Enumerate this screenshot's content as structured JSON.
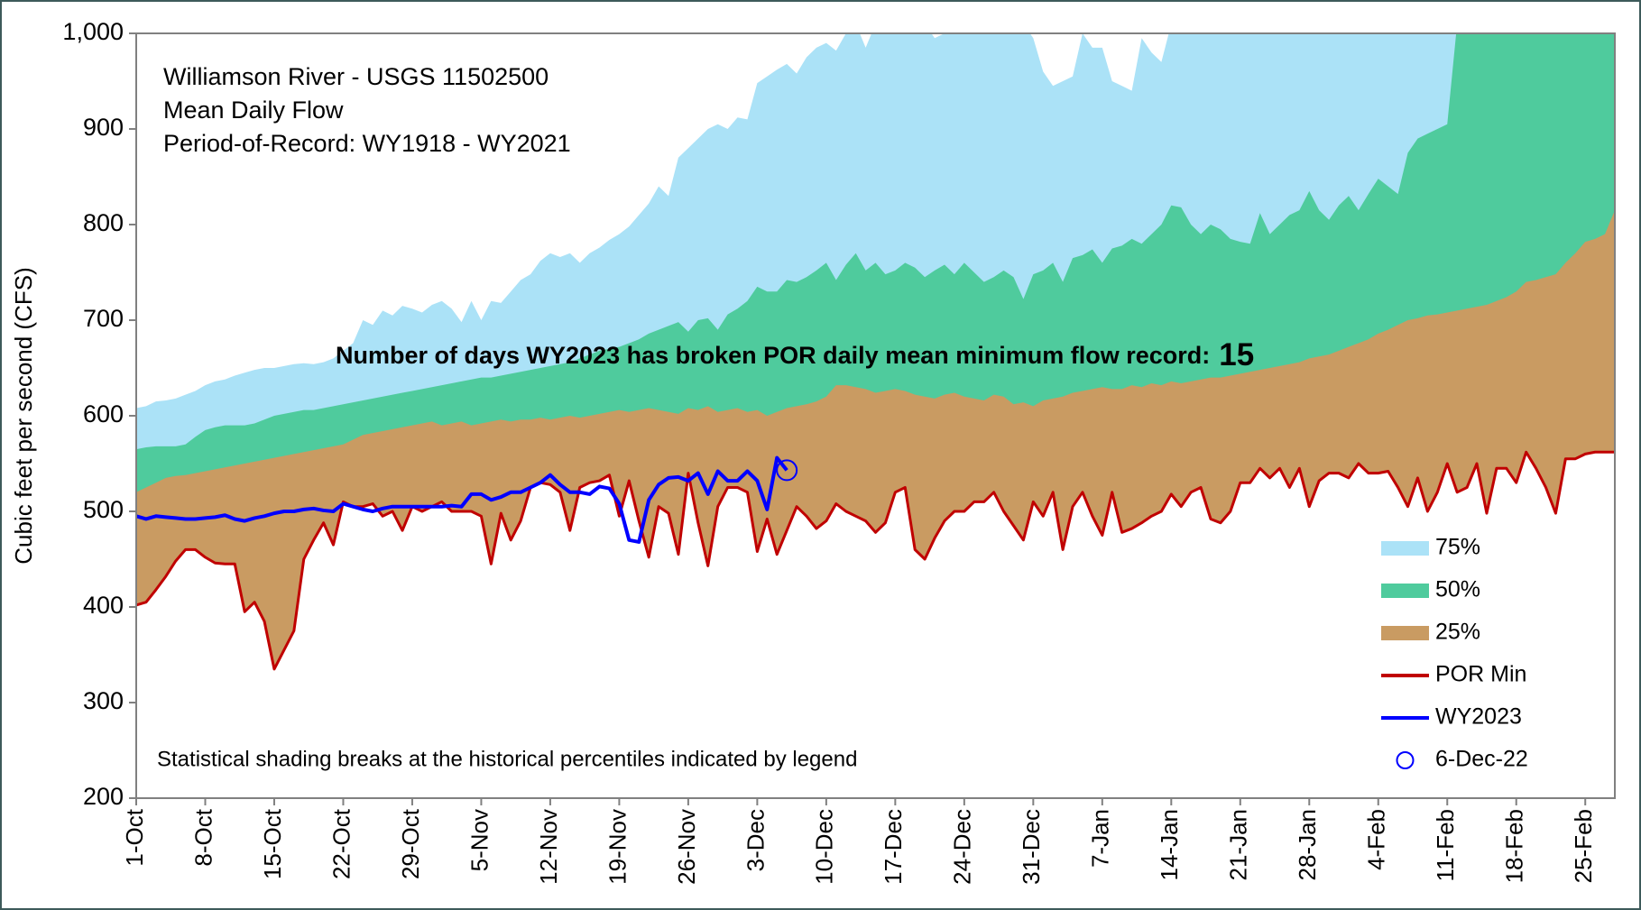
{
  "chart_data": {
    "type": "percentile_area",
    "title_lines": [
      "Williamson River - USGS 11502500",
      "Mean Daily Flow",
      "Period-of-Record: WY1918 - WY2021"
    ],
    "annotation": "Number of days WY2023 has broken POR daily mean minimum flow record:",
    "record_count": 15,
    "footnote": "Statistical shading breaks at the historical percentiles indicated by legend",
    "y_label": "Cubic feet per second (CFS)",
    "ylim": [
      200,
      1000
    ],
    "yticks": [
      200,
      300,
      400,
      500,
      600,
      700,
      800,
      900,
      {
        "value": 1000,
        "label": "1,000"
      }
    ],
    "grid": false,
    "legend": "right",
    "categories": [
      "1-Oct",
      null,
      null,
      null,
      null,
      null,
      null,
      "8-Oct",
      null,
      null,
      null,
      null,
      null,
      null,
      "15-Oct",
      null,
      null,
      null,
      null,
      null,
      null,
      "22-Oct",
      null,
      null,
      null,
      null,
      null,
      null,
      "29-Oct",
      null,
      null,
      null,
      null,
      null,
      null,
      "5-Nov",
      null,
      null,
      null,
      null,
      null,
      null,
      "12-Nov",
      null,
      null,
      null,
      null,
      null,
      null,
      "19-Nov",
      null,
      null,
      null,
      null,
      null,
      null,
      "26-Nov",
      null,
      null,
      null,
      null,
      null,
      null,
      "3-Dec",
      null,
      null,
      null,
      null,
      null,
      null,
      "10-Dec",
      null,
      null,
      null,
      null,
      null,
      null,
      "17-Dec",
      null,
      null,
      null,
      null,
      null,
      null,
      "24-Dec",
      null,
      null,
      null,
      null,
      null,
      null,
      "31-Dec",
      null,
      null,
      null,
      null,
      null,
      null,
      "7-Jan",
      null,
      null,
      null,
      null,
      null,
      null,
      "14-Jan",
      null,
      null,
      null,
      null,
      null,
      null,
      "21-Jan",
      null,
      null,
      null,
      null,
      null,
      null,
      "28-Jan",
      null,
      null,
      null,
      null,
      null,
      null,
      "4-Feb",
      null,
      null,
      null,
      null,
      null,
      null,
      "11-Feb",
      null,
      null,
      null,
      null,
      null,
      null,
      "18-Feb",
      null,
      null,
      null,
      null,
      null,
      null,
      "25-Feb",
      null,
      null,
      null
    ],
    "series": [
      {
        "name": "75%",
        "kind": "area",
        "color": "#abe2f7",
        "values": [
          608,
          610,
          615,
          616,
          618,
          622,
          626,
          632,
          636,
          638,
          642,
          645,
          648,
          650,
          650,
          652,
          654,
          655,
          654,
          656,
          660,
          668,
          676,
          700,
          695,
          710,
          705,
          715,
          712,
          708,
          716,
          720,
          712,
          698,
          720,
          700,
          720,
          718,
          730,
          742,
          748,
          762,
          770,
          766,
          770,
          760,
          770,
          776,
          784,
          790,
          798,
          810,
          822,
          840,
          830,
          870,
          880,
          890,
          900,
          905,
          900,
          912,
          910,
          948,
          955,
          962,
          968,
          958,
          975,
          985,
          990,
          982,
          1000,
          1010,
          985,
          1010,
          1010,
          1010,
          1000,
          1010,
          1010,
          995,
          1000,
          1010,
          1010,
          1000,
          1010,
          1010,
          1010,
          1000,
          1010,
          995,
          960,
          945,
          950,
          955,
          1000,
          985,
          985,
          950,
          945,
          940,
          995,
          980,
          970,
          1010,
          1010,
          1010,
          1010,
          1010,
          1010,
          1010,
          1010,
          1010,
          1010,
          1010,
          1010,
          1010,
          1010,
          1010,
          1010,
          1010,
          1010,
          1010,
          1010,
          1010,
          1010,
          1010,
          1010,
          1010,
          1010,
          1010,
          1010,
          1010,
          1010,
          1010,
          1010,
          1010,
          1010,
          1010,
          1010,
          1010,
          1010,
          1010,
          1010,
          1010,
          1010,
          1010,
          1010,
          1010,
          1010
        ]
      },
      {
        "name": "50%",
        "kind": "area",
        "color": "#4fcb9d",
        "values": [
          565,
          567,
          568,
          568,
          568,
          570,
          578,
          585,
          588,
          590,
          590,
          590,
          592,
          596,
          600,
          602,
          604,
          606,
          606,
          608,
          610,
          612,
          614,
          616,
          618,
          620,
          622,
          624,
          626,
          628,
          630,
          632,
          634,
          636,
          638,
          640,
          640,
          642,
          644,
          646,
          648,
          650,
          652,
          654,
          656,
          660,
          664,
          668,
          670,
          672,
          676,
          680,
          686,
          690,
          694,
          698,
          688,
          700,
          702,
          690,
          706,
          712,
          720,
          735,
          730,
          730,
          742,
          740,
          745,
          752,
          760,
          742,
          758,
          770,
          752,
          760,
          748,
          752,
          760,
          755,
          745,
          752,
          758,
          748,
          760,
          750,
          740,
          745,
          752,
          745,
          722,
          748,
          752,
          760,
          740,
          765,
          768,
          774,
          760,
          775,
          778,
          785,
          780,
          790,
          800,
          820,
          818,
          800,
          790,
          800,
          795,
          785,
          782,
          780,
          812,
          790,
          800,
          810,
          815,
          835,
          815,
          805,
          820,
          830,
          815,
          832,
          848,
          840,
          832,
          875,
          890,
          895,
          900,
          905,
          1010,
          1010,
          1010,
          1010,
          1010,
          1010,
          1010,
          1010,
          1010,
          1010,
          1010,
          1010,
          1010,
          1010,
          1010,
          1010,
          1010
        ]
      },
      {
        "name": "25%",
        "kind": "area",
        "color": "#c99b62",
        "values": [
          520,
          525,
          530,
          535,
          537,
          538,
          540,
          542,
          544,
          546,
          548,
          550,
          552,
          554,
          556,
          558,
          560,
          562,
          564,
          566,
          568,
          570,
          575,
          580,
          582,
          584,
          586,
          588,
          590,
          592,
          594,
          590,
          592,
          594,
          590,
          592,
          594,
          596,
          594,
          596,
          596,
          598,
          596,
          598,
          600,
          598,
          600,
          602,
          604,
          606,
          604,
          606,
          608,
          606,
          604,
          602,
          608,
          606,
          610,
          604,
          606,
          608,
          604,
          606,
          600,
          604,
          608,
          610,
          612,
          615,
          620,
          632,
          632,
          630,
          628,
          624,
          626,
          628,
          626,
          622,
          620,
          618,
          622,
          624,
          620,
          618,
          616,
          622,
          620,
          612,
          614,
          610,
          616,
          618,
          620,
          624,
          626,
          628,
          630,
          628,
          628,
          632,
          630,
          634,
          632,
          636,
          634,
          636,
          638,
          640,
          640,
          642,
          644,
          646,
          648,
          650,
          652,
          654,
          656,
          660,
          662,
          664,
          668,
          672,
          676,
          680,
          686,
          690,
          695,
          700,
          702,
          705,
          706,
          708,
          710,
          712,
          714,
          716,
          720,
          724,
          730,
          740,
          742,
          745,
          748,
          760,
          770,
          782,
          785,
          790,
          815
        ]
      },
      {
        "name": "POR Min",
        "kind": "line",
        "color": "#c00000",
        "values": [
          402,
          405,
          418,
          432,
          448,
          460,
          460,
          452,
          446,
          445,
          445,
          395,
          405,
          385,
          335,
          355,
          375,
          450,
          470,
          488,
          465,
          510,
          505,
          505,
          508,
          495,
          500,
          480,
          505,
          500,
          505,
          510,
          500,
          500,
          500,
          495,
          445,
          498,
          470,
          490,
          525,
          530,
          528,
          520,
          480,
          525,
          530,
          532,
          538,
          495,
          532,
          490,
          452,
          505,
          498,
          455,
          540,
          488,
          443,
          505,
          525,
          525,
          520,
          458,
          492,
          455,
          480,
          505,
          495,
          482,
          490,
          508,
          500,
          495,
          490,
          478,
          488,
          520,
          525,
          460,
          450,
          472,
          490,
          500,
          500,
          510,
          510,
          520,
          500,
          485,
          470,
          510,
          495,
          520,
          460,
          505,
          520,
          495,
          475,
          520,
          478,
          482,
          488,
          495,
          500,
          518,
          505,
          520,
          525,
          492,
          488,
          500,
          530,
          530,
          545,
          535,
          545,
          525,
          545,
          505,
          532,
          540,
          540,
          535,
          550,
          540,
          540,
          542,
          525,
          505,
          535,
          500,
          520,
          550,
          520,
          525,
          550,
          498,
          545,
          545,
          530,
          562,
          545,
          525,
          498,
          555,
          555,
          560,
          562,
          562,
          562
        ]
      },
      {
        "name": "WY2023",
        "kind": "line",
        "color": "#0000ff",
        "values": [
          495,
          492,
          495,
          494,
          493,
          492,
          492,
          493,
          494,
          496,
          492,
          490,
          493,
          495,
          498,
          500,
          500,
          502,
          503,
          501,
          500,
          508,
          505,
          502,
          500,
          503,
          505,
          505,
          505,
          505,
          505,
          505,
          506,
          505,
          518,
          518,
          512,
          515,
          520,
          520,
          525,
          530,
          538,
          528,
          520,
          520,
          518,
          526,
          524,
          508,
          470,
          468,
          512,
          528,
          535,
          536,
          532,
          540,
          518,
          542,
          532,
          532,
          542,
          532,
          502,
          556,
          543,
          null,
          null,
          null,
          null,
          null,
          null,
          null,
          null,
          null,
          null,
          null,
          null,
          null,
          null,
          null,
          null,
          null,
          null,
          null,
          null,
          null,
          null,
          null,
          null,
          null,
          null,
          null,
          null,
          null,
          null,
          null,
          null,
          null,
          null,
          null,
          null,
          null,
          null,
          null,
          null,
          null,
          null,
          null,
          null,
          null,
          null,
          null,
          null,
          null,
          null,
          null,
          null,
          null,
          null,
          null,
          null,
          null,
          null,
          null,
          null,
          null,
          null,
          null,
          null,
          null,
          null,
          null,
          null,
          null,
          null,
          null,
          null,
          null,
          null,
          null,
          null,
          null,
          null,
          null,
          null,
          null,
          null,
          null,
          null
        ]
      }
    ],
    "marker": {
      "name": "6-Dec-22",
      "value": 543,
      "color": "#0000ff"
    }
  }
}
